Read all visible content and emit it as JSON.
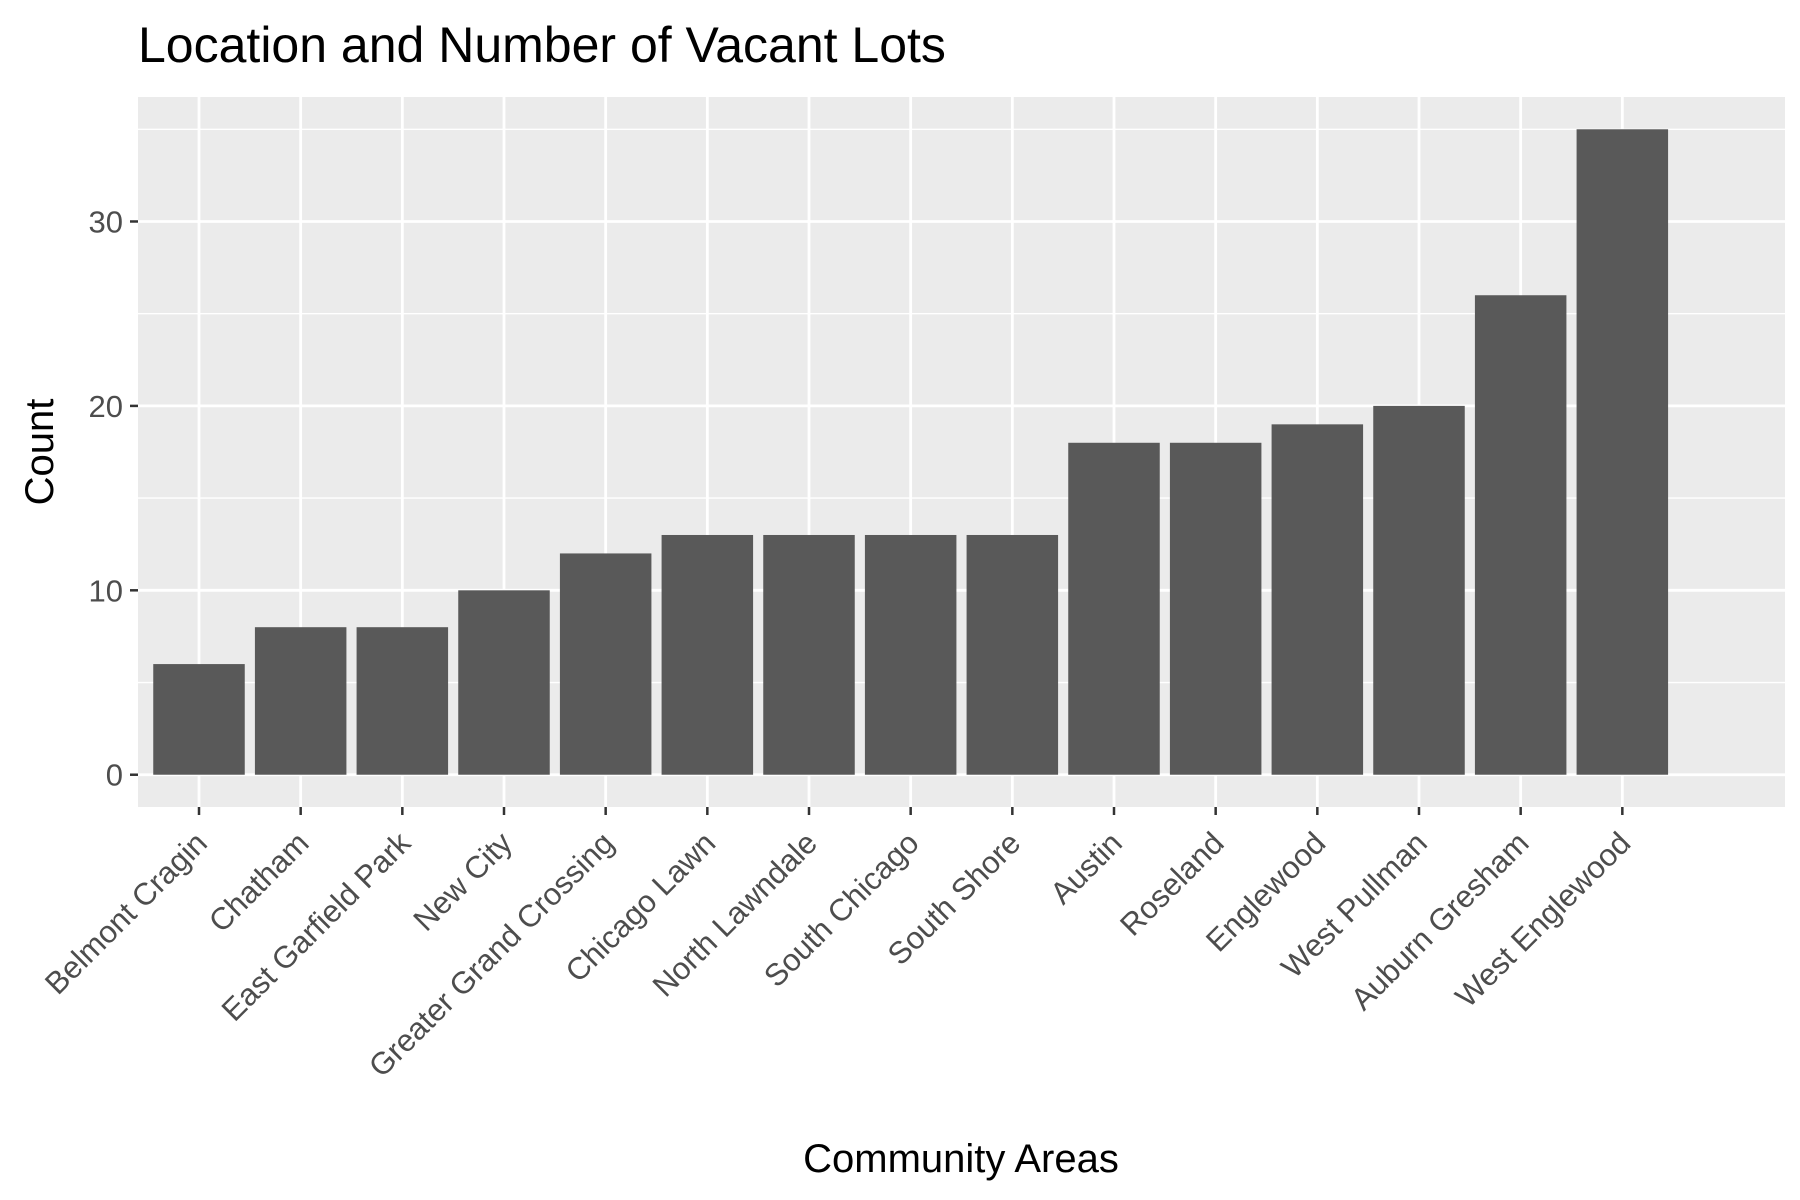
{
  "chart_data": {
    "type": "bar",
    "title": "Location and Number of Vacant Lots",
    "xlabel": "Community Areas",
    "ylabel": "Count",
    "categories": [
      "Belmont Cragin",
      "Chatham",
      "East Garfield Park",
      "New City",
      "Greater Grand Crossing",
      "Chicago Lawn",
      "North Lawndale",
      "South Chicago",
      "South Shore",
      "Austin",
      "Roseland",
      "Englewood",
      "West Pullman",
      "Auburn Gresham",
      "West Englewood"
    ],
    "values": [
      6,
      8,
      8,
      10,
      12,
      13,
      13,
      13,
      13,
      18,
      18,
      19,
      20,
      26,
      35
    ],
    "y_ticks": [
      0,
      10,
      20,
      30
    ],
    "ylim": [
      -1.75,
      36.75
    ],
    "grid": true,
    "x_tick_rotation_deg": 45,
    "colors": {
      "bar": "#595959",
      "panel_background": "#ebebeb",
      "grid_line": "#ffffff",
      "tick_mark": "#333333",
      "tick_label": "#4d4d4d",
      "text": "#000000"
    }
  }
}
